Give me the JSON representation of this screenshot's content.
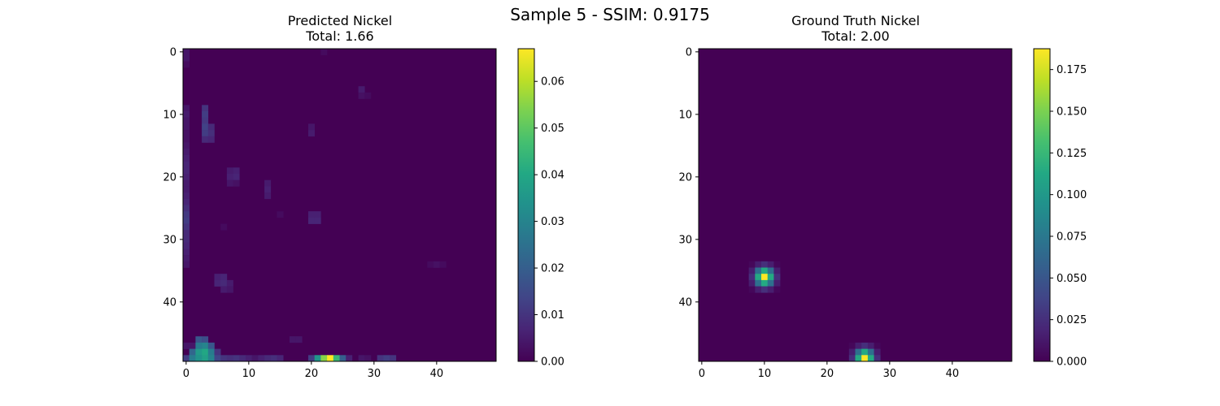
{
  "figure_title": "Sample 5 - SSIM: 0.9175",
  "chart_data": [
    {
      "type": "heatmap",
      "title": "Predicted Nickel",
      "subtitle": "Total: 1.66",
      "grid_size": [
        50,
        50
      ],
      "x_ticks": [
        0,
        10,
        20,
        30,
        40
      ],
      "y_ticks": [
        0,
        10,
        20,
        30,
        40
      ],
      "colormap": "viridis",
      "colorbar": {
        "range": [
          0,
          0.067
        ],
        "ticks": [
          0.0,
          0.01,
          0.02,
          0.03,
          0.04,
          0.05,
          0.06
        ],
        "tick_labels": [
          "0.00",
          "0.01",
          "0.02",
          "0.03",
          "0.04",
          "0.05",
          "0.06"
        ]
      },
      "cells": [
        [
          0,
          0,
          0.004
        ],
        [
          0,
          1,
          0.004
        ],
        [
          0,
          2,
          0.002
        ],
        [
          22,
          0,
          0.002
        ],
        [
          0,
          9,
          0.004
        ],
        [
          0,
          10,
          0.005
        ],
        [
          0,
          11,
          0.004
        ],
        [
          0,
          12,
          0.004
        ],
        [
          0,
          13,
          0.003
        ],
        [
          0,
          14,
          0.003
        ],
        [
          0,
          15,
          0.004
        ],
        [
          0,
          16,
          0.005
        ],
        [
          0,
          17,
          0.006
        ],
        [
          0,
          18,
          0.007
        ],
        [
          0,
          19,
          0.007
        ],
        [
          0,
          20,
          0.006
        ],
        [
          0,
          21,
          0.005
        ],
        [
          0,
          22,
          0.005
        ],
        [
          0,
          23,
          0.006
        ],
        [
          0,
          24,
          0.007
        ],
        [
          0,
          25,
          0.009
        ],
        [
          0,
          26,
          0.011
        ],
        [
          0,
          27,
          0.012
        ],
        [
          0,
          28,
          0.01
        ],
        [
          0,
          29,
          0.008
        ],
        [
          0,
          30,
          0.008
        ],
        [
          0,
          31,
          0.007
        ],
        [
          0,
          32,
          0.006
        ],
        [
          0,
          33,
          0.005
        ],
        [
          0,
          34,
          0.004
        ],
        [
          3,
          9,
          0.01
        ],
        [
          3,
          10,
          0.012
        ],
        [
          3,
          11,
          0.011
        ],
        [
          3,
          12,
          0.013
        ],
        [
          3,
          13,
          0.012
        ],
        [
          3,
          14,
          0.008
        ],
        [
          4,
          12,
          0.008
        ],
        [
          4,
          13,
          0.009
        ],
        [
          4,
          14,
          0.007
        ],
        [
          28,
          6,
          0.005
        ],
        [
          28,
          7,
          0.003
        ],
        [
          29,
          7,
          0.002
        ],
        [
          20,
          12,
          0.004
        ],
        [
          20,
          13,
          0.005
        ],
        [
          7,
          19,
          0.005
        ],
        [
          8,
          19,
          0.006
        ],
        [
          7,
          20,
          0.006
        ],
        [
          8,
          20,
          0.007
        ],
        [
          7,
          21,
          0.004
        ],
        [
          8,
          21,
          0.003
        ],
        [
          13,
          21,
          0.005
        ],
        [
          13,
          22,
          0.006
        ],
        [
          13,
          23,
          0.005
        ],
        [
          15,
          26,
          0.002
        ],
        [
          20,
          26,
          0.006
        ],
        [
          21,
          26,
          0.006
        ],
        [
          20,
          27,
          0.007
        ],
        [
          21,
          27,
          0.007
        ],
        [
          6,
          28,
          0.002
        ],
        [
          40,
          34,
          0.003
        ],
        [
          39,
          34,
          0.002
        ],
        [
          41,
          34,
          0.002
        ],
        [
          5,
          36,
          0.006
        ],
        [
          6,
          36,
          0.007
        ],
        [
          5,
          37,
          0.007
        ],
        [
          6,
          37,
          0.008
        ],
        [
          7,
          37,
          0.005
        ],
        [
          6,
          38,
          0.005
        ],
        [
          7,
          38,
          0.004
        ],
        [
          17,
          46,
          0.004
        ],
        [
          18,
          46,
          0.004
        ],
        [
          0,
          47,
          0.004
        ],
        [
          1,
          47,
          0.004
        ],
        [
          2,
          46,
          0.018
        ],
        [
          3,
          46,
          0.016
        ],
        [
          2,
          47,
          0.028
        ],
        [
          3,
          47,
          0.03
        ],
        [
          4,
          47,
          0.018
        ],
        [
          1,
          48,
          0.022
        ],
        [
          2,
          48,
          0.036
        ],
        [
          3,
          48,
          0.04
        ],
        [
          4,
          48,
          0.028
        ],
        [
          5,
          48,
          0.01
        ],
        [
          0,
          49,
          0.012
        ],
        [
          1,
          49,
          0.028
        ],
        [
          2,
          49,
          0.034
        ],
        [
          3,
          49,
          0.038
        ],
        [
          4,
          49,
          0.03
        ],
        [
          5,
          49,
          0.014
        ],
        [
          6,
          49,
          0.01
        ],
        [
          7,
          49,
          0.009
        ],
        [
          8,
          49,
          0.01
        ],
        [
          9,
          49,
          0.008
        ],
        [
          10,
          49,
          0.006
        ],
        [
          11,
          49,
          0.004
        ],
        [
          12,
          49,
          0.006
        ],
        [
          13,
          49,
          0.008
        ],
        [
          14,
          49,
          0.009
        ],
        [
          15,
          49,
          0.007
        ],
        [
          20,
          49,
          0.012
        ],
        [
          21,
          49,
          0.035
        ],
        [
          22,
          49,
          0.055
        ],
        [
          23,
          49,
          0.067
        ],
        [
          24,
          49,
          0.045
        ],
        [
          25,
          49,
          0.02
        ],
        [
          26,
          49,
          0.006
        ],
        [
          28,
          49,
          0.004
        ],
        [
          29,
          49,
          0.003
        ],
        [
          31,
          49,
          0.01
        ],
        [
          32,
          49,
          0.012
        ],
        [
          33,
          49,
          0.01
        ]
      ]
    },
    {
      "type": "heatmap",
      "title": "Ground Truth Nickel",
      "subtitle": "Total: 2.00",
      "grid_size": [
        50,
        50
      ],
      "x_ticks": [
        0,
        10,
        20,
        30,
        40
      ],
      "y_ticks": [
        0,
        10,
        20,
        30,
        40
      ],
      "colormap": "viridis",
      "colorbar": {
        "range": [
          0,
          0.1875
        ],
        "ticks": [
          0.0,
          0.025,
          0.05,
          0.075,
          0.1,
          0.125,
          0.15,
          0.175
        ],
        "tick_labels": [
          "0.000",
          "0.025",
          "0.050",
          "0.075",
          "0.100",
          "0.125",
          "0.150",
          "0.175"
        ]
      },
      "gaussians": [
        {
          "cx": 10,
          "cy": 36,
          "peak": 0.1875,
          "sigma": 1.0,
          "radius": 2
        },
        {
          "cx": 26,
          "cy": 49,
          "peak": 0.1875,
          "sigma": 1.0,
          "radius": 2
        }
      ]
    }
  ]
}
